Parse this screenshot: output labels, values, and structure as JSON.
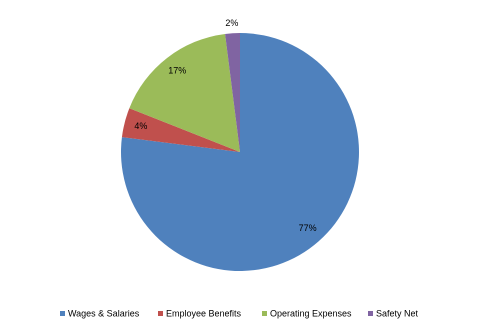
{
  "chart_data": {
    "type": "pie",
    "categories": [
      "Wages & Salaries",
      "Employee Benefits",
      "Operating Expenses",
      "Safety Net"
    ],
    "values": [
      77,
      4,
      17,
      2
    ],
    "value_labels": [
      "77%",
      "4%",
      "17%",
      "2%"
    ],
    "colors": [
      "#4f81bd",
      "#c0504d",
      "#9bbb59",
      "#8064a2"
    ],
    "legend": "bottom"
  }
}
